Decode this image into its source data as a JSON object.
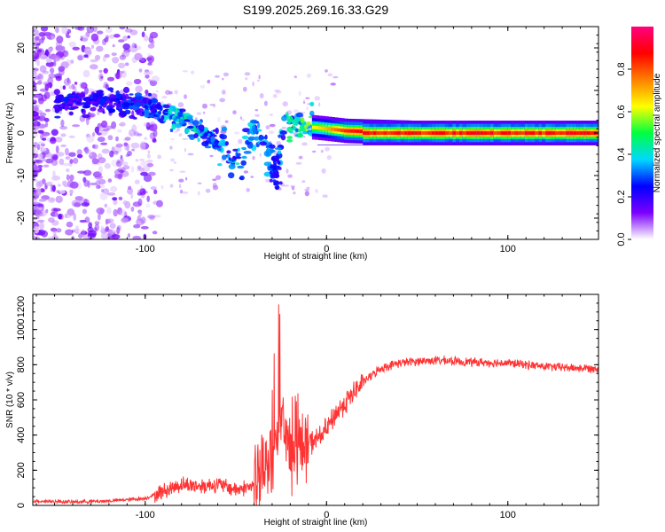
{
  "title": "S199.2025.269.16.33.G29",
  "chart_data": [
    {
      "type": "heatmap",
      "title": "S199.2025.269.16.33.G29",
      "xlabel": "Height of straight line (km)",
      "ylabel": "Frequency (Hz)",
      "xlim": [
        -162,
        150
      ],
      "ylim": [
        -25,
        25
      ],
      "xticks": [
        "-100",
        "0",
        "100"
      ],
      "yticks": [
        "20",
        "10",
        "0",
        "-10",
        "-20"
      ],
      "colorbar": {
        "label": "Normalized spectral amplitude",
        "range": [
          0,
          1
        ],
        "ticks": [
          "0.0",
          "0.2",
          "0.4",
          "0.6",
          "0.8"
        ],
        "colormap": [
          "#ffffff",
          "#7b00ff",
          "#0000ff",
          "#00d8ff",
          "#00ff40",
          "#ffff00",
          "#ff8000",
          "#ff0000",
          "#ff0080"
        ]
      },
      "dominant_line": [
        {
          "x": -140,
          "y": 7.5,
          "amp": 0.25
        },
        {
          "x": -120,
          "y": 7.5,
          "amp": 0.25
        },
        {
          "x": -100,
          "y": 6.5,
          "amp": 0.3
        },
        {
          "x": -85,
          "y": 4,
          "amp": 0.4
        },
        {
          "x": -75,
          "y": 2,
          "amp": 0.45
        },
        {
          "x": -65,
          "y": -1,
          "amp": 0.35
        },
        {
          "x": -55,
          "y": -4,
          "amp": 0.35
        },
        {
          "x": -47,
          "y": -7,
          "amp": 0.4
        },
        {
          "x": -40,
          "y": 2,
          "amp": 0.35
        },
        {
          "x": -35,
          "y": -3,
          "amp": 0.4
        },
        {
          "x": -28,
          "y": -8,
          "amp": 0.3
        },
        {
          "x": -22,
          "y": 2,
          "amp": 0.45
        },
        {
          "x": -12,
          "y": 1.5,
          "amp": 0.6
        },
        {
          "x": 0,
          "y": 1,
          "amp": 0.7
        },
        {
          "x": 10,
          "y": 0.5,
          "amp": 0.85
        },
        {
          "x": 50,
          "y": 0,
          "amp": 0.95
        },
        {
          "x": 100,
          "y": 0,
          "amp": 0.95
        },
        {
          "x": 150,
          "y": 0,
          "amp": 0.9
        }
      ]
    },
    {
      "type": "line",
      "xlabel": "Height of straight line (km)",
      "ylabel": "SNR (10 * v/v)",
      "xlim": [
        -162,
        150
      ],
      "ylim": [
        0,
        1200
      ],
      "xticks": [
        "-100",
        "0",
        "100"
      ],
      "yticks": [
        "0",
        "200",
        "400",
        "600",
        "800",
        "1000",
        "1200"
      ],
      "series": [
        {
          "name": "SNR",
          "color": "#ff3333",
          "x": [
            -162,
            -140,
            -120,
            -100,
            -90,
            -80,
            -70,
            -60,
            -50,
            -40,
            -35,
            -30,
            -25,
            -22,
            -20,
            -15,
            -10,
            -5,
            0,
            5,
            10,
            15,
            20,
            25,
            30,
            40,
            50,
            60,
            80,
            100,
            120,
            140,
            150
          ],
          "y": [
            25,
            20,
            25,
            40,
            80,
            120,
            110,
            120,
            90,
            110,
            180,
            280,
            450,
            380,
            300,
            330,
            350,
            380,
            430,
            520,
            580,
            640,
            700,
            740,
            780,
            810,
            820,
            825,
            815,
            810,
            790,
            780,
            780
          ]
        }
      ]
    }
  ]
}
